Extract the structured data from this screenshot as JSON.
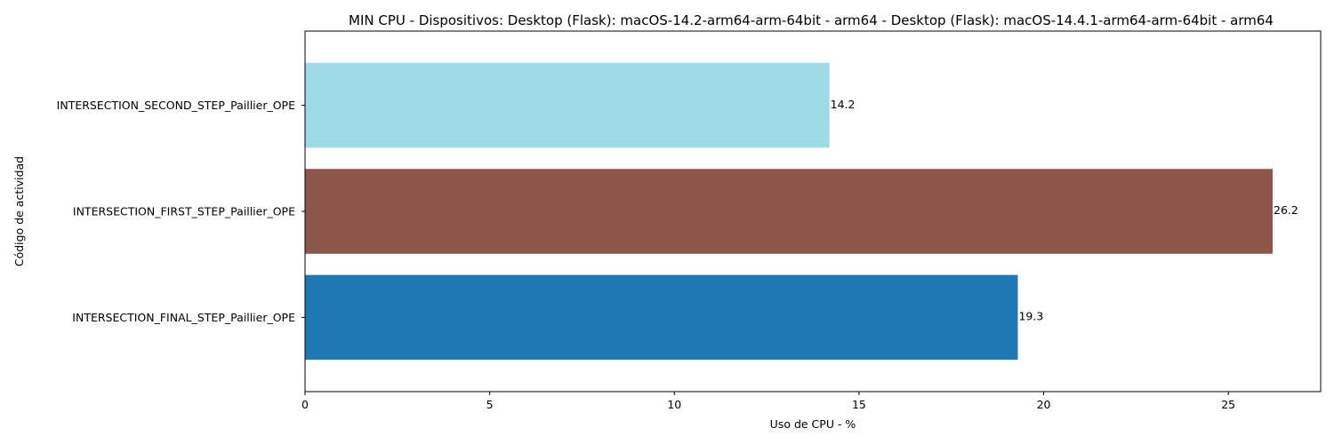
{
  "chart_data": {
    "type": "bar",
    "orientation": "horizontal",
    "title": "MIN CPU - Dispositivos: Desktop (Flask): macOS-14.2-arm64-arm-64bit - arm64 - Desktop (Flask): macOS-14.4.1-arm64-arm-64bit - arm64",
    "xlabel": "Uso de CPU - %",
    "ylabel": "Código de actividad",
    "categories": [
      "INTERSECTION_FINAL_STEP_Paillier_OPE",
      "INTERSECTION_FIRST_STEP_Paillier_OPE",
      "INTERSECTION_SECOND_STEP_Paillier_OPE"
    ],
    "values": [
      19.3,
      26.2,
      14.2
    ],
    "value_labels": [
      "19.3",
      "26.2",
      "14.2"
    ],
    "colors": [
      "#1f77b4",
      "#8c564b",
      "#9edae5"
    ],
    "xlim": [
      0,
      27.5
    ],
    "xticks": [
      0,
      5,
      10,
      15,
      20,
      25
    ],
    "xtick_labels": [
      "0",
      "5",
      "10",
      "15",
      "20",
      "25"
    ],
    "grid": false,
    "legend": "none"
  }
}
